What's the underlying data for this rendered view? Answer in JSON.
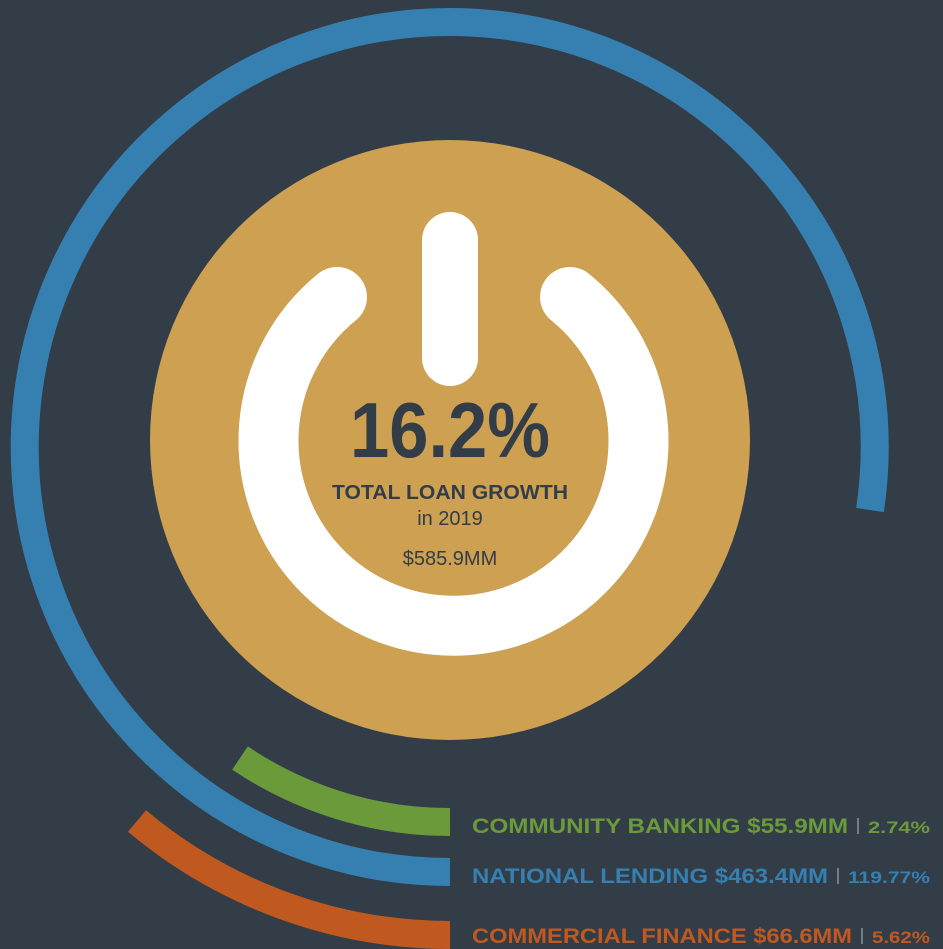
{
  "center": {
    "headline": "16.2%",
    "caption": "TOTAL LOAN GROWTH",
    "period": "in 2019",
    "amount": "$585.9MM"
  },
  "segments": [
    {
      "label": "COMMUNITY BANKING $55.9MM",
      "share": "2.74%",
      "color": "#6b9a3b"
    },
    {
      "label": "NATIONAL LENDING $463.4MM",
      "share": "119.77%",
      "color": "#3580b1"
    },
    {
      "label": "COMMERCIAL FINANCE $66.6MM",
      "share": "5.62%",
      "color": "#c0591f"
    }
  ]
}
